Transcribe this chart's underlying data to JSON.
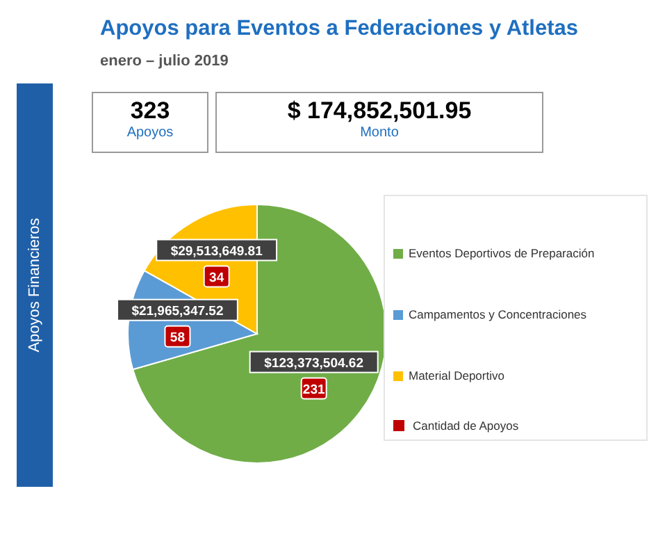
{
  "chart_data": {
    "type": "pie",
    "title": "Apoyos para Eventos a Federaciones y Atletas",
    "subtitle": "enero – julio 2019",
    "categories": [
      "Eventos Deportivos de Preparación",
      "Campamentos y Concentraciones",
      "Material Deportivo"
    ],
    "values": [
      123373504.62,
      21965347.52,
      29513649.81
    ],
    "colors": [
      "#70ad47",
      "#5b9bd5",
      "#ffc000"
    ],
    "value_labels": [
      "$123,373,504.62",
      "$21,965,347.52",
      "$29,513,649.81"
    ],
    "legend": "right",
    "annotations": [
      "Apoyos Financieros",
      "323",
      "Apoyos",
      "$ 174,852,501.95",
      "Monto",
      "Cantidad de Apoyos",
      {
        "text": "231",
        "x": "Eventos Deportivos de Preparación"
      },
      {
        "text": "58",
        "x": "Campamentos y Concentraciones"
      },
      {
        "text": "34",
        "x": "Material Deportivo"
      }
    ]
  }
}
